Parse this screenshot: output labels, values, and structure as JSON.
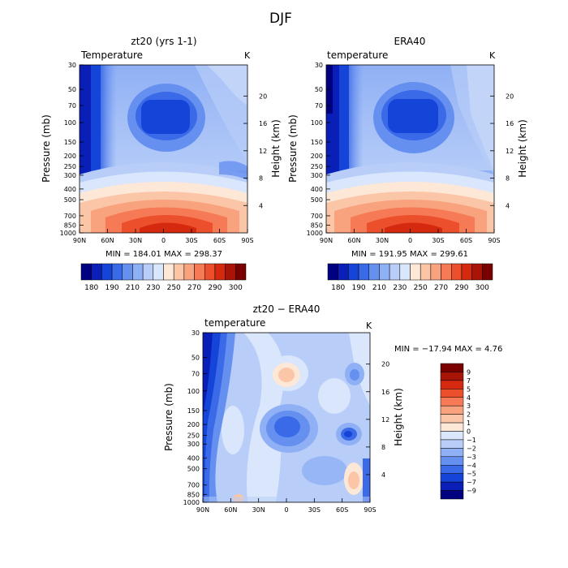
{
  "title": "DJF",
  "palette": {
    "colors": [
      "#000080",
      "#0a1fb8",
      "#1545d8",
      "#3a6ae8",
      "#6690f0",
      "#8fb0f5",
      "#b8cdf8",
      "#d9e6fb",
      "#fde8d8",
      "#fbc6a8",
      "#f9a27e",
      "#f57a55",
      "#ec4f2b",
      "#d62a10",
      "#a81506",
      "#7a0000"
    ]
  },
  "diff_palette": {
    "colors": [
      "#000080",
      "#0a1fb8",
      "#1545d8",
      "#3a6ae8",
      "#6690f0",
      "#8fb0f5",
      "#b8cdf8",
      "#d9e6fb",
      "#fde8d8",
      "#fbc6a8",
      "#f9a27e",
      "#f57a55",
      "#ec4f2b",
      "#d62a10",
      "#a81506",
      "#7a0000"
    ]
  },
  "chart_data": [
    {
      "type": "heatmap",
      "id": "model",
      "title": "zt20 (yrs 1-1)",
      "subtitle_left": "Temperature",
      "subtitle_right": "K",
      "ylabel": "Pressure (mb)",
      "ylabel_right": "Height (km)",
      "x_ticks": [
        "90N",
        "60N",
        "30N",
        "0",
        "30S",
        "60S",
        "90S"
      ],
      "y_ticks": [
        "30",
        "50",
        "70",
        "100",
        "150",
        "200",
        "250",
        "300",
        "400",
        "500",
        "700",
        "850",
        "1000"
      ],
      "y_right_ticks": [
        "20",
        "16",
        "12",
        "8",
        "4"
      ],
      "stats": "MIN = 184.01   MAX = 298.37",
      "colorbar_labels": [
        "180",
        "190",
        "210",
        "230",
        "250",
        "270",
        "290",
        "300"
      ]
    },
    {
      "type": "heatmap",
      "id": "era40",
      "title": "ERA40",
      "subtitle_left": "temperature",
      "subtitle_right": "K",
      "ylabel": "Pressure (mb)",
      "ylabel_right": "Height (km)",
      "x_ticks": [
        "90N",
        "60N",
        "30N",
        "0",
        "30S",
        "60S",
        "90S"
      ],
      "y_ticks": [
        "30",
        "50",
        "70",
        "100",
        "150",
        "200",
        "250",
        "300",
        "400",
        "500",
        "700",
        "850",
        "1000"
      ],
      "y_right_ticks": [
        "20",
        "16",
        "12",
        "8",
        "4"
      ],
      "stats": "MIN = 191.95   MAX = 299.61",
      "colorbar_labels": [
        "180",
        "190",
        "210",
        "230",
        "250",
        "270",
        "290",
        "300"
      ]
    },
    {
      "type": "heatmap",
      "id": "diff",
      "title": "zt20 − ERA40",
      "subtitle_left": "temperature",
      "subtitle_right": "K",
      "ylabel": "Pressure (mb)",
      "ylabel_right": "Height (km)",
      "x_ticks": [
        "90N",
        "60N",
        "30N",
        "0",
        "30S",
        "60S",
        "90S"
      ],
      "y_ticks": [
        "30",
        "50",
        "70",
        "100",
        "150",
        "200",
        "250",
        "300",
        "400",
        "500",
        "700",
        "850",
        "1000"
      ],
      "y_right_ticks": [
        "20",
        "16",
        "12",
        "8",
        "4"
      ],
      "stats": "MIN = −17.94   MAX =    4.76",
      "colorbar_labels": [
        "9",
        "7",
        "5",
        "4",
        "3",
        "2",
        "1",
        "0",
        "−1",
        "−2",
        "−3",
        "−4",
        "−5",
        "−7",
        "−9"
      ]
    }
  ]
}
